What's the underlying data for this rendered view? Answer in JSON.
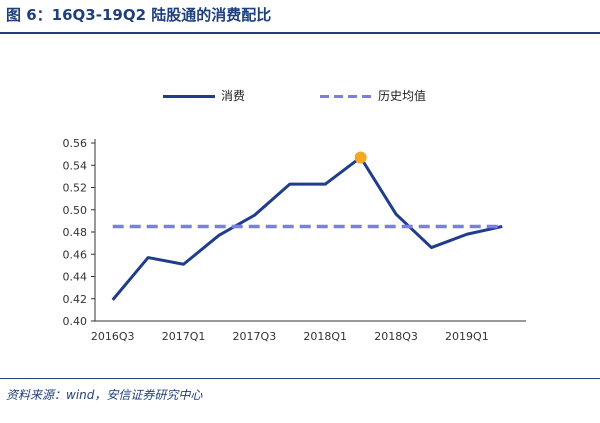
{
  "figure_title": "图 6：16Q3-19Q2 陆股通的消费配比",
  "source_text": "资料来源：wind，安信证券研究中心",
  "chart_data": {
    "type": "line",
    "categories": [
      "2016Q3",
      "2016Q4",
      "2017Q1",
      "2017Q2",
      "2017Q3",
      "2017Q4",
      "2018Q1",
      "2018Q2",
      "2018Q3",
      "2018Q4",
      "2019Q1",
      "2019Q2"
    ],
    "x_tick_labels": [
      "2016Q3",
      "2017Q1",
      "2017Q3",
      "2018Q1",
      "2018Q3",
      "2019Q1"
    ],
    "series": [
      {
        "name": "消费",
        "values": [
          0.419,
          0.457,
          0.451,
          0.477,
          0.495,
          0.523,
          0.523,
          0.547,
          0.496,
          0.466,
          0.478,
          0.485
        ],
        "color": "#1f3d8a"
      },
      {
        "name": "历史均值",
        "values": [
          0.485,
          0.485,
          0.485,
          0.485,
          0.485,
          0.485,
          0.485,
          0.485,
          0.485,
          0.485,
          0.485,
          0.485
        ],
        "color": "#7b7fe0",
        "style": "dashed"
      }
    ],
    "highlight": {
      "index": 7,
      "color": "#f5a623"
    },
    "ylim": [
      0.4,
      0.56
    ],
    "yticks": [
      "0.40",
      "0.42",
      "0.44",
      "0.46",
      "0.48",
      "0.50",
      "0.52",
      "0.54",
      "0.56"
    ],
    "legend_position": "top"
  }
}
